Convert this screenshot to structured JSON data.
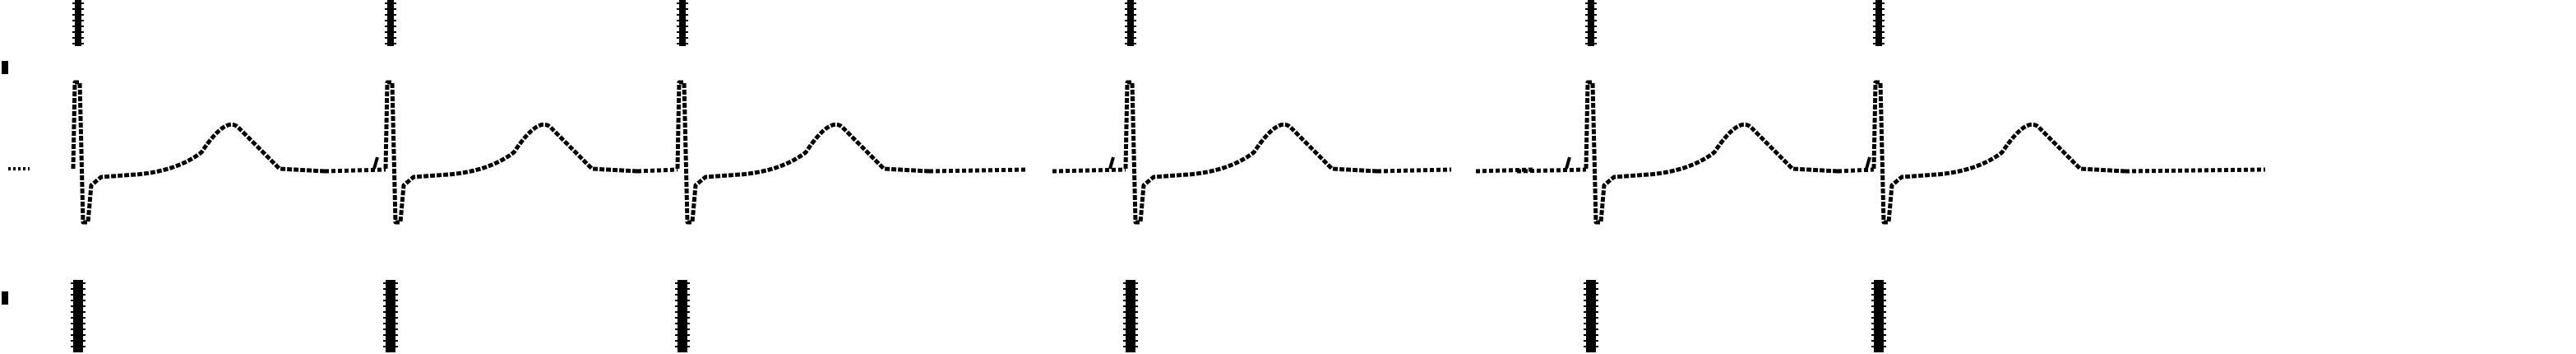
{
  "image": {
    "background_color": "#ffffff",
    "ink_color": "#000000",
    "style": "dot-matrix / plotter printout of a single ECG lead",
    "heartbeat_count": 6
  }
}
